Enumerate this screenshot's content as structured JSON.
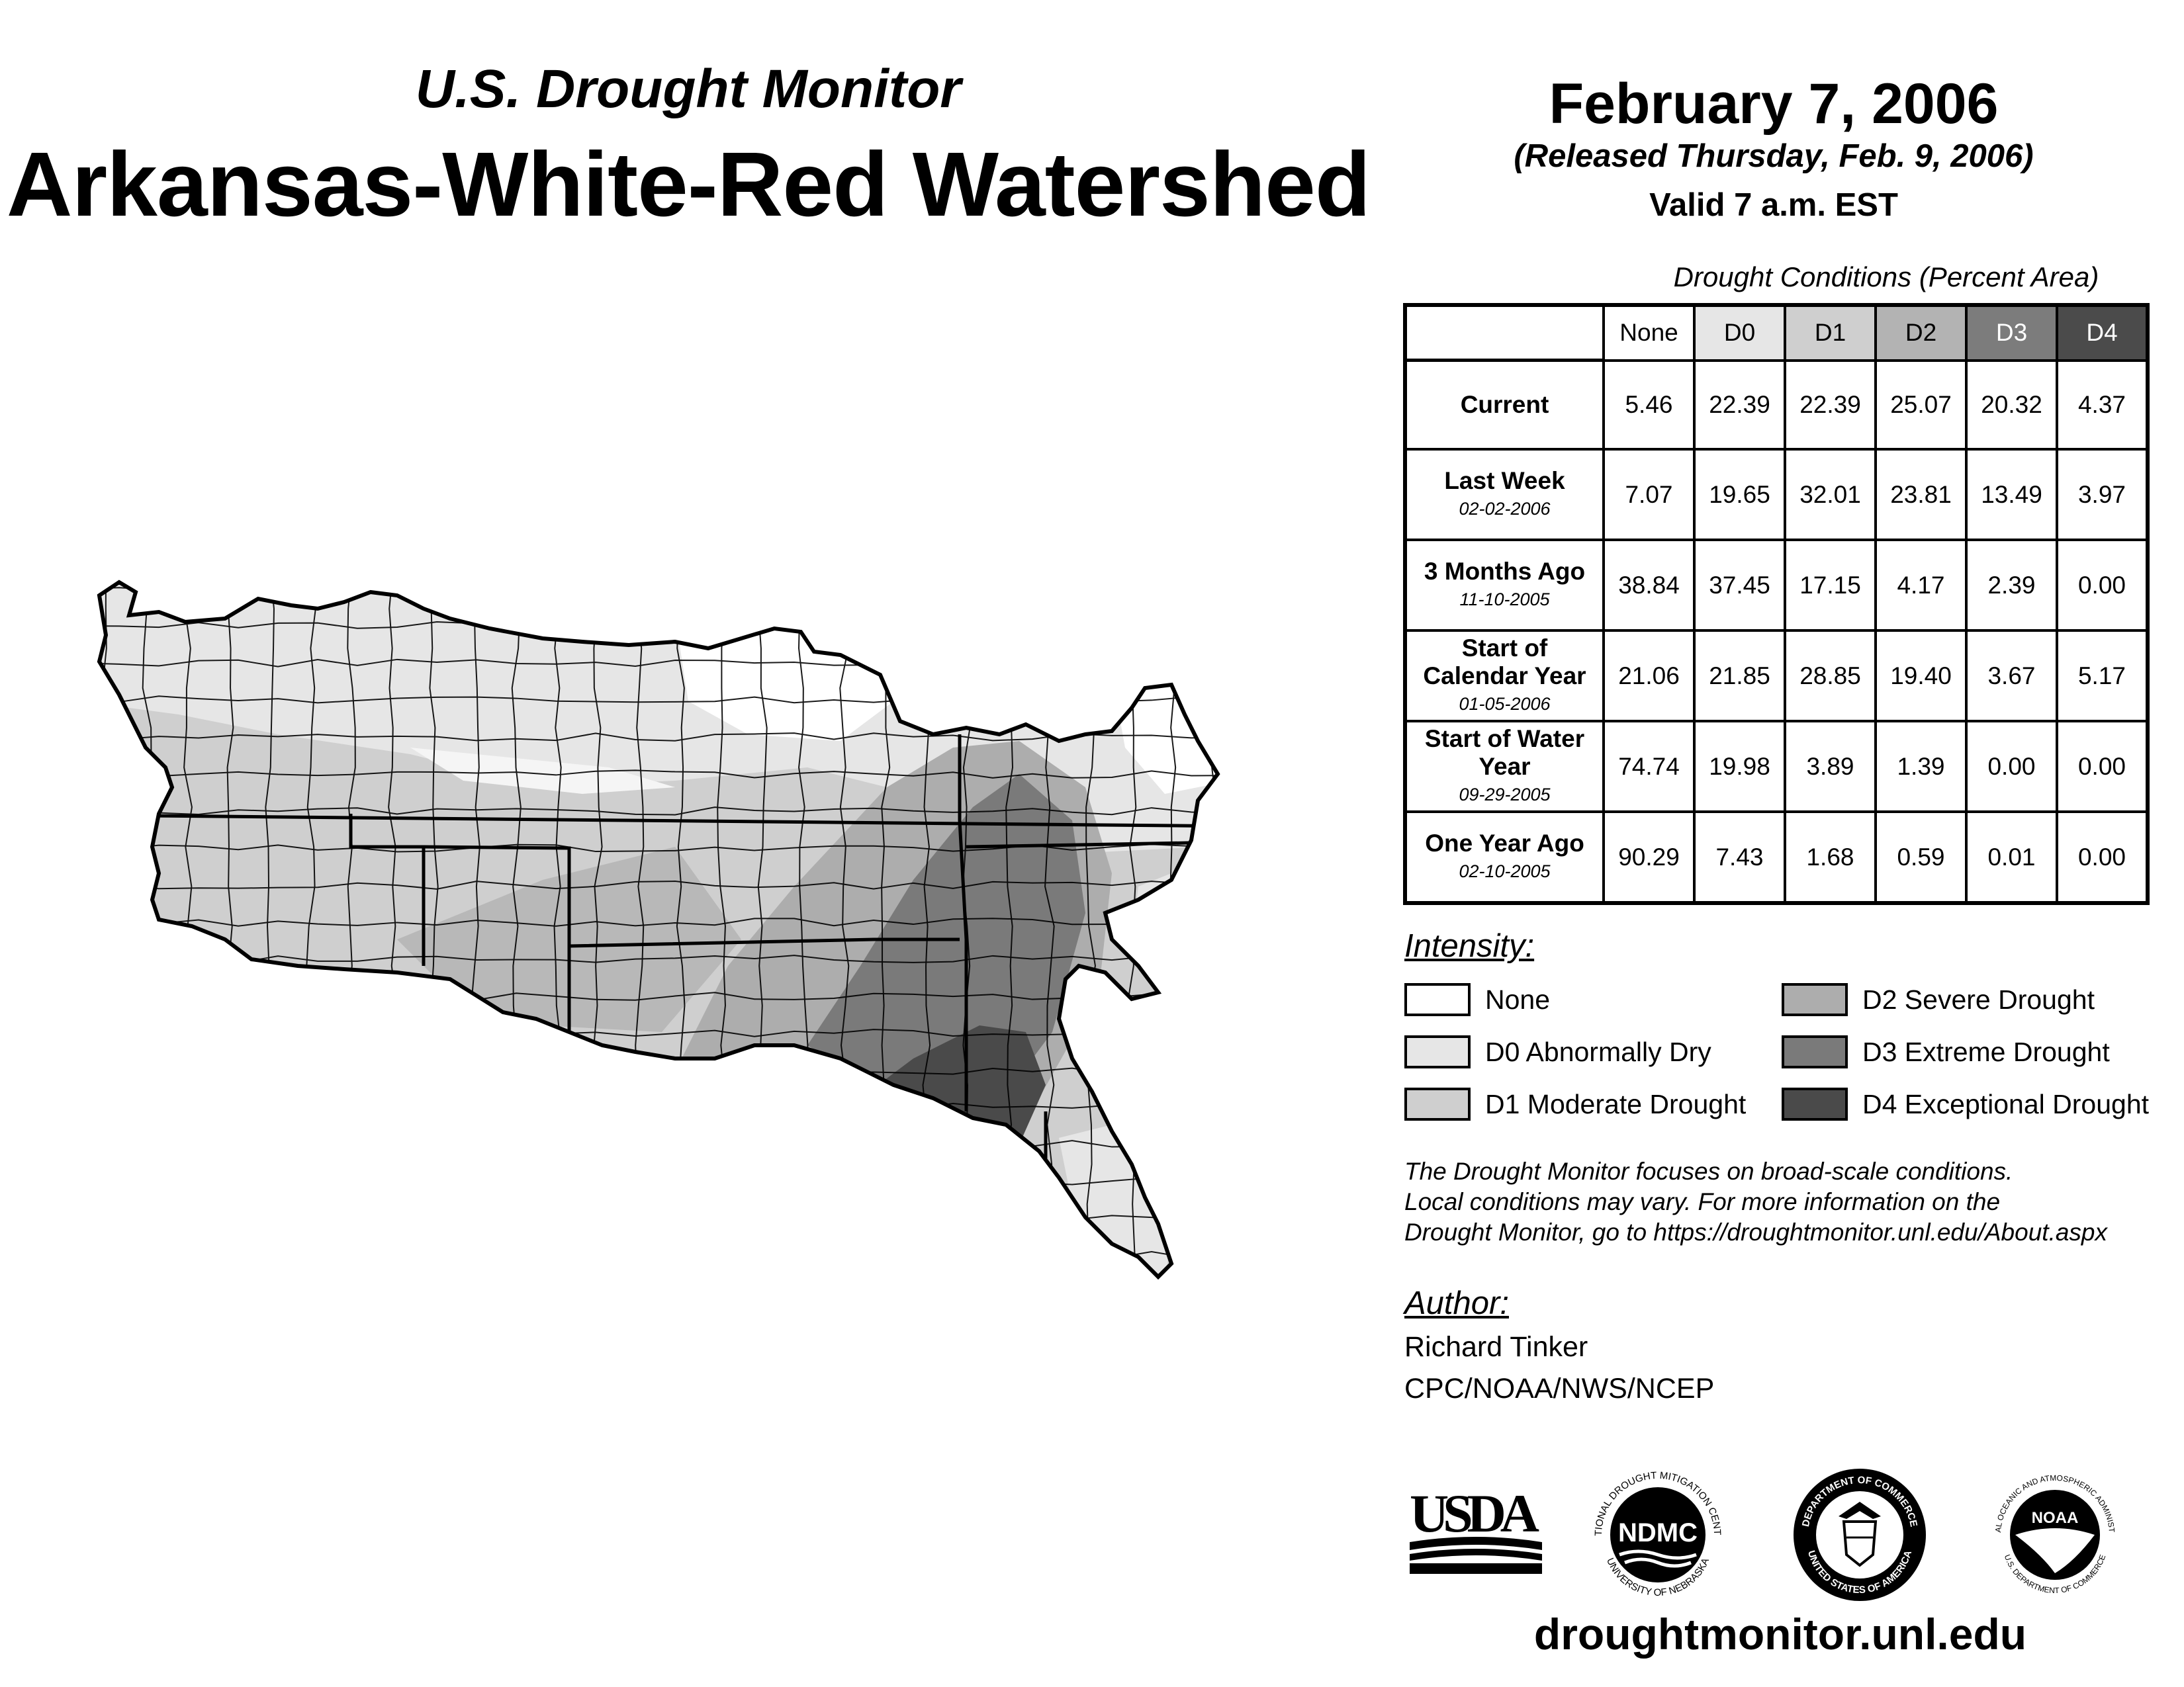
{
  "header": {
    "subtitle": "U.S. Drought Monitor",
    "title": "Arkansas-White-Red Watershed",
    "date": "February 7, 2006",
    "released": "(Released Thursday, Feb. 9, 2006)",
    "valid": "Valid 7 a.m. EST"
  },
  "table": {
    "caption": "Drought Conditions (Percent Area)",
    "columns": [
      "None",
      "D0",
      "D1",
      "D2",
      "D3",
      "D4"
    ],
    "column_colors": [
      "#ffffff",
      "#e6e6e6",
      "#cfcfcf",
      "#b3b3b3",
      "#7c7c7c",
      "#4b4b4b"
    ],
    "rows": [
      {
        "label": "Current",
        "date": "",
        "values": [
          "5.46",
          "22.39",
          "22.39",
          "25.07",
          "20.32",
          "4.37"
        ]
      },
      {
        "label": "Last Week",
        "date": "02-02-2006",
        "values": [
          "7.07",
          "19.65",
          "32.01",
          "23.81",
          "13.49",
          "3.97"
        ]
      },
      {
        "label": "3 Months Ago",
        "date": "11-10-2005",
        "values": [
          "38.84",
          "37.45",
          "17.15",
          "4.17",
          "2.39",
          "0.00"
        ]
      },
      {
        "label": "Start of Calendar Year",
        "date": "01-05-2006",
        "values": [
          "21.06",
          "21.85",
          "28.85",
          "19.40",
          "3.67",
          "5.17"
        ]
      },
      {
        "label": "Start of Water Year",
        "date": "09-29-2005",
        "values": [
          "74.74",
          "19.98",
          "3.89",
          "1.39",
          "0.00",
          "0.00"
        ]
      },
      {
        "label": "One Year Ago",
        "date": "02-10-2005",
        "values": [
          "90.29",
          "7.43",
          "1.68",
          "0.59",
          "0.01",
          "0.00"
        ]
      }
    ]
  },
  "legend": {
    "title": "Intensity:",
    "items": [
      {
        "label": "None",
        "color": "#ffffff"
      },
      {
        "label": "D0 Abnormally Dry",
        "color": "#e6e6e6"
      },
      {
        "label": "D1 Moderate Drought",
        "color": "#cfcfcf"
      },
      {
        "label": "D2 Severe Drought",
        "color": "#adadad"
      },
      {
        "label": "D3 Extreme Drought",
        "color": "#7a7a7a"
      },
      {
        "label": "D4 Exceptional Drought",
        "color": "#4a4a4a"
      }
    ]
  },
  "note": {
    "line1": "The Drought Monitor focuses on broad-scale conditions.",
    "line2": "Local conditions may vary. For more information on the",
    "line3": "Drought Monitor, go to https://droughtmonitor.unl.edu/About.aspx"
  },
  "author": {
    "title": "Author:",
    "name": "Richard Tinker",
    "org": "CPC/NOAA/NWS/NCEP"
  },
  "logos": {
    "usda": "USDA",
    "ndmc": "NDMC",
    "ndmc_ring_top": "NATIONAL DROUGHT MITIGATION CENTER",
    "ndmc_ring_bottom": "UNIVERSITY OF NEBRASKA",
    "doc_ring_top": "DEPARTMENT OF COMMERCE",
    "doc_ring_bottom": "UNITED STATES OF AMERICA",
    "noaa": "NOAA",
    "noaa_ring_top": "NATIONAL OCEANIC AND ATMOSPHERIC ADMINISTRATION",
    "noaa_ring_bottom": "U.S. DEPARTMENT OF COMMERCE"
  },
  "url": "droughtmonitor.unl.edu"
}
